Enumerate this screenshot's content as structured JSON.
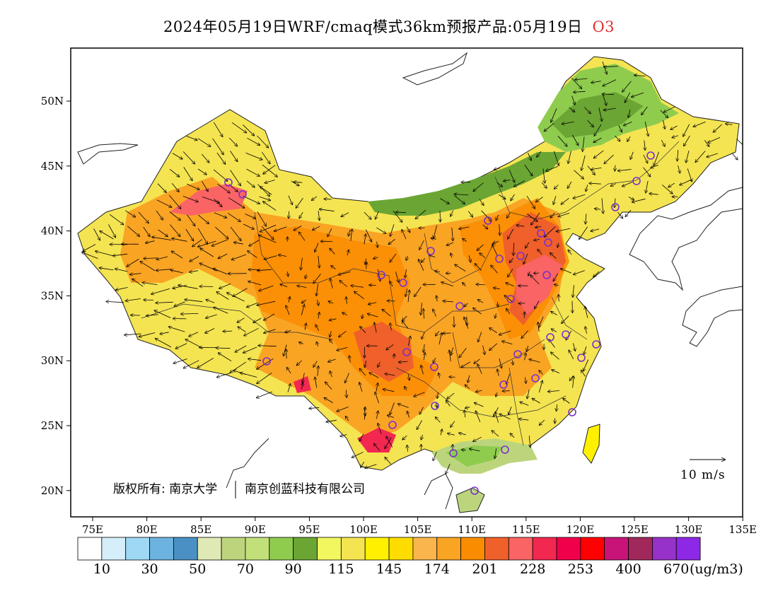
{
  "title": {
    "text": "2024年05月19日WRF/cmaq模式36km预报产品:05月19日",
    "pollutant": "O3"
  },
  "axes": {
    "lon_ticks": [
      "75E",
      "80E",
      "85E",
      "90E",
      "95E",
      "100E",
      "105E",
      "110E",
      "115E",
      "120E",
      "125E",
      "130E",
      "135E"
    ],
    "lat_ticks": [
      "50N",
      "45N",
      "40N",
      "35N",
      "30N",
      "25N",
      "20N"
    ]
  },
  "copyright": {
    "left": "版权所有: 南京大学",
    "right": "南京创蓝科技有限公司"
  },
  "wind_scale": {
    "label": "10 m/s"
  },
  "colorbar": {
    "colors": [
      "#ffffff",
      "#d6eefa",
      "#9fd8f5",
      "#6cb3df",
      "#4a90c4",
      "#dfe9b5",
      "#bcd57c",
      "#c2e07a",
      "#8fcc4e",
      "#6ba533",
      "#f2f760",
      "#f4e451",
      "#fff000",
      "#ffdc00",
      "#fab64c",
      "#faa424",
      "#fa8c00",
      "#f0602a",
      "#fa6464",
      "#f22850",
      "#f0004b",
      "#ff0000",
      "#c81478",
      "#a0285a",
      "#9632c8",
      "#8c28e6"
    ],
    "labels": [
      "10",
      "30",
      "50",
      "70",
      "90",
      "115",
      "145",
      "174",
      "201",
      "228",
      "253",
      "400",
      "670"
    ],
    "unit": "(ug/m3)"
  },
  "legend_colors": {
    "frame": "#000000",
    "marker": "#7a2fd0",
    "pollutant_label": "#e03030"
  }
}
